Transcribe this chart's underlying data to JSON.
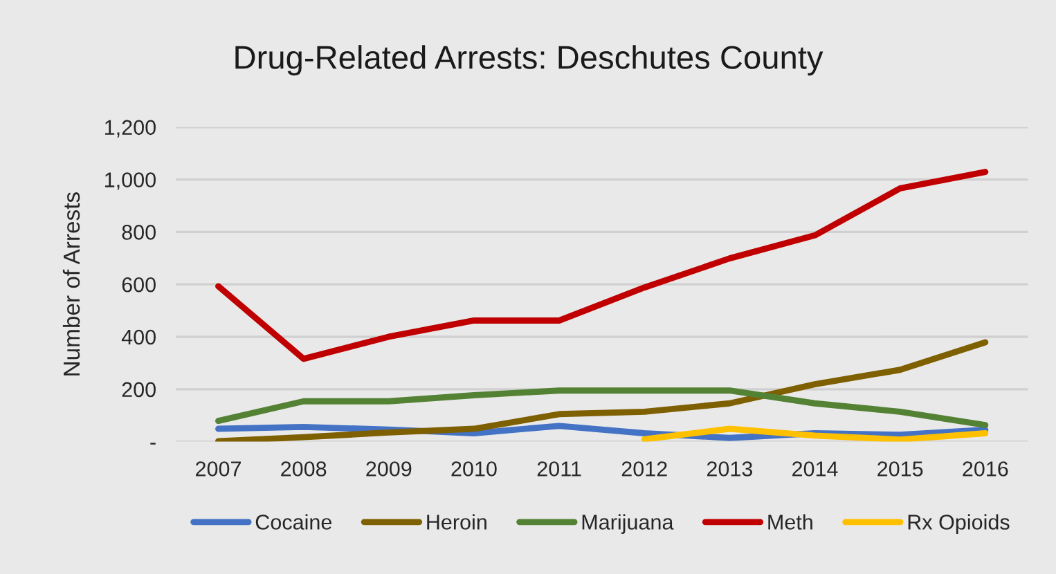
{
  "chart_data": {
    "type": "line",
    "title": "Drug-Related Arrests: Deschutes County",
    "ylabel": "Number of Arrests",
    "categories": [
      "2007",
      "2008",
      "2009",
      "2010",
      "2011",
      "2012",
      "2013",
      "2014",
      "2015",
      "2016"
    ],
    "series": [
      {
        "name": "Cocaine",
        "color": "#4472c4",
        "values": [
          49,
          56,
          46,
          32,
          60,
          32,
          14,
          32,
          26,
          45
        ]
      },
      {
        "name": "Heroin",
        "color": "#7f6000",
        "values": [
          2,
          17,
          35,
          49,
          105,
          114,
          146,
          219,
          274,
          379
        ]
      },
      {
        "name": "Marijuana",
        "color": "#548235",
        "values": [
          79,
          154,
          154,
          177,
          195,
          195,
          195,
          146,
          114,
          63
        ]
      },
      {
        "name": "Meth",
        "color": "#c00000",
        "values": [
          593,
          316,
          400,
          462,
          462,
          588,
          699,
          787,
          966,
          1029
        ]
      },
      {
        "name": "Rx Opioids",
        "color": "#ffc000",
        "values": [
          null,
          null,
          null,
          null,
          null,
          9,
          49,
          23,
          8,
          32
        ]
      }
    ],
    "ylim": [
      0,
      1200
    ],
    "yticks": [
      {
        "value": 0,
        "label": "-"
      },
      200,
      400,
      600,
      800,
      {
        "value": 1000,
        "label": "1,000"
      },
      {
        "value": 1200,
        "label": "1,200"
      }
    ],
    "grid": "y",
    "legend": "bottom",
    "marker": "none",
    "line_style": "solid"
  }
}
